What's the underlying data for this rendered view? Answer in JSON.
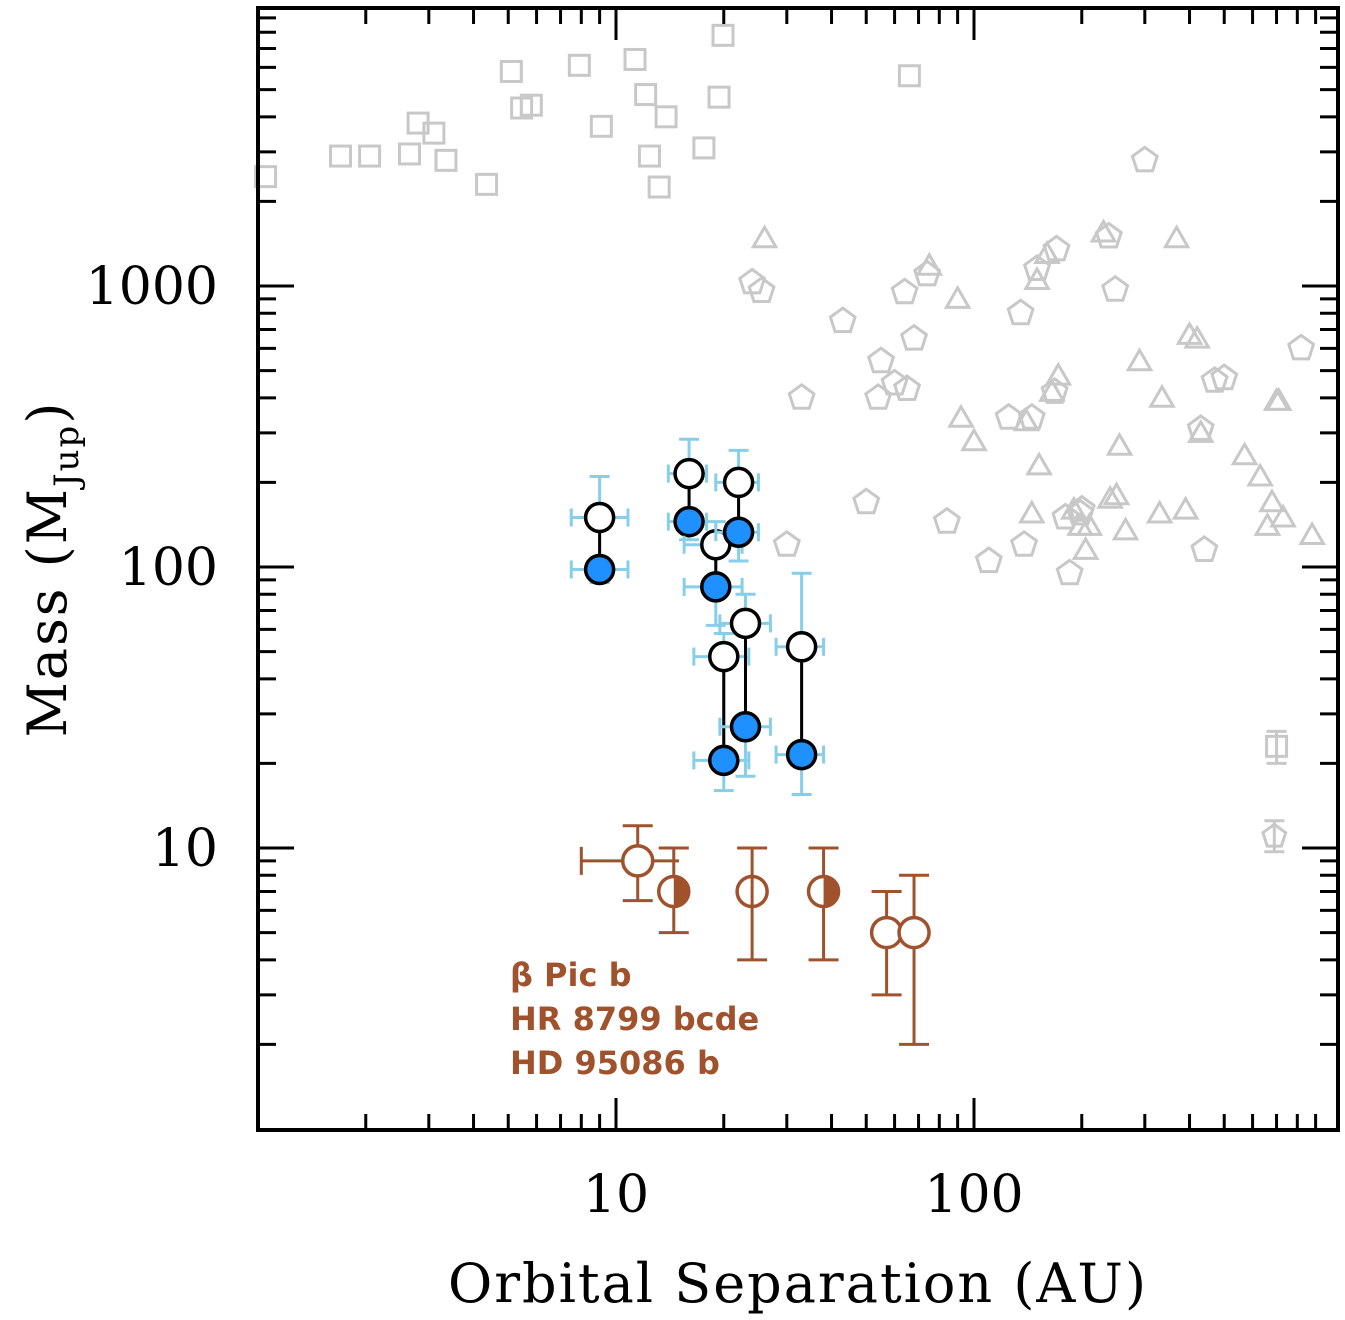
{
  "chart_data": {
    "type": "scatter",
    "xlabel": "Orbital Separation (AU)",
    "ylabel": "Mass (M",
    "ylabel_sub": "Jup",
    "ylabel_close": ")",
    "xscale": "log",
    "yscale": "log",
    "xlim": [
      1,
      900
    ],
    "ylim": [
      1.1,
      9000
    ],
    "x_ticks": [
      {
        "value": 10,
        "label": "10"
      },
      {
        "value": 100,
        "label": "100"
      }
    ],
    "y_ticks": [
      {
        "value": 10,
        "label": "10"
      },
      {
        "value": 100,
        "label": "100"
      },
      {
        "value": 1000,
        "label": "1000"
      }
    ],
    "colors": {
      "gray": "#c8c8c8",
      "blue": "#1e90ff",
      "light_blue": "#87ceeb",
      "brown": "#a0522d"
    },
    "annotations": [
      "β Pic b",
      "HR 8799 bcde",
      "HD 95086 b"
    ],
    "squares": [
      [
        1.05,
        2450
      ],
      [
        1.7,
        2900
      ],
      [
        2.05,
        2900
      ],
      [
        2.65,
        2950
      ],
      [
        2.8,
        3800
      ],
      [
        3.1,
        3500
      ],
      [
        3.35,
        2800
      ],
      [
        4.35,
        2300
      ],
      [
        5.1,
        5800
      ],
      [
        5.45,
        4300
      ],
      [
        5.8,
        4400
      ],
      [
        7.9,
        6100
      ],
      [
        9.1,
        3700
      ],
      [
        11.3,
        6400
      ],
      [
        12.1,
        4800
      ],
      [
        12.4,
        2900
      ],
      [
        13.2,
        2250
      ],
      [
        13.8,
        4000
      ],
      [
        17.6,
        3100
      ],
      [
        19.4,
        4700
      ],
      [
        19.9,
        7800
      ],
      [
        66.0,
        5600
      ]
    ],
    "pentagons": [
      [
        24.0,
        1030
      ],
      [
        25.5,
        960
      ],
      [
        30.0,
        120
      ],
      [
        33.0,
        400
      ],
      [
        43.0,
        750
      ],
      [
        50.0,
        170
      ],
      [
        54.0,
        400
      ],
      [
        55.0,
        540
      ],
      [
        60.0,
        450
      ],
      [
        64.0,
        950
      ],
      [
        65.0,
        430
      ],
      [
        68.0,
        650
      ],
      [
        74.0,
        1100
      ],
      [
        84.0,
        145
      ],
      [
        110.0,
        105
      ],
      [
        125.0,
        340
      ],
      [
        135.0,
        800
      ],
      [
        138.0,
        120
      ],
      [
        145.0,
        340
      ],
      [
        150.0,
        1150
      ],
      [
        168.0,
        420
      ],
      [
        170.0,
        1350
      ],
      [
        180.0,
        150
      ],
      [
        185.0,
        95
      ],
      [
        198.0,
        155
      ],
      [
        200.0,
        160
      ],
      [
        238.0,
        1500
      ],
      [
        248.0,
        970
      ],
      [
        300.0,
        2800
      ],
      [
        430.0,
        310
      ],
      [
        440.0,
        115
      ],
      [
        470.0,
        460
      ],
      [
        500.0,
        470
      ],
      [
        820.0,
        600
      ]
    ],
    "triangles": [
      [
        26.0,
        1480
      ],
      [
        75.0,
        1180
      ],
      [
        90.0,
        900
      ],
      [
        92.0,
        340
      ],
      [
        100.0,
        280
      ],
      [
        140.0,
        330
      ],
      [
        145.0,
        155
      ],
      [
        150.0,
        1050
      ],
      [
        152.0,
        230
      ],
      [
        160.0,
        1300
      ],
      [
        165.0,
        420
      ],
      [
        172.0,
        480
      ],
      [
        190.0,
        160
      ],
      [
        198.0,
        140
      ],
      [
        205.0,
        115
      ],
      [
        210.0,
        140
      ],
      [
        230.0,
        1550
      ],
      [
        240.0,
        175
      ],
      [
        250.0,
        180
      ],
      [
        255.0,
        270
      ],
      [
        265.0,
        135
      ],
      [
        290.0,
        540
      ],
      [
        330.0,
        155
      ],
      [
        335.0,
        400
      ],
      [
        368.0,
        1480
      ],
      [
        390.0,
        160
      ],
      [
        400.0,
        670
      ],
      [
        420.0,
        650
      ],
      [
        430.0,
        300
      ],
      [
        570.0,
        250
      ],
      [
        630.0,
        210
      ],
      [
        660.0,
        140
      ],
      [
        680.0,
        170
      ],
      [
        700.0,
        390
      ],
      [
        710.0,
        390
      ],
      [
        730.0,
        150
      ],
      [
        880.0,
        130
      ]
    ],
    "gray_errorbars": [
      {
        "x": 690.0,
        "y": 11.0,
        "ylo": 9.7,
        "yhi": 12.5,
        "marker": "pentagon"
      },
      {
        "x": 700.0,
        "y": 23.0,
        "ylo": 20.0,
        "yhi": 26.0,
        "marker": "square"
      }
    ],
    "blue_pairs": [
      {
        "x": 9.0,
        "xlo": 7.5,
        "xhi": 10.8,
        "y_open": 150,
        "y_filled": 98,
        "ylo": 88,
        "yhi": 210
      },
      {
        "x": 16.0,
        "xlo": 14.0,
        "xhi": 17.9,
        "y_open": 215,
        "y_filled": 145,
        "ylo": 125,
        "yhi": 285
      },
      {
        "x": 19.0,
        "xlo": 15.5,
        "xhi": 22.5,
        "y_open": 120,
        "y_filled": 85,
        "ylo": 62,
        "yhi": 145
      },
      {
        "x": 22.0,
        "xlo": 19.0,
        "xhi": 25.0,
        "y_open": 200,
        "y_filled": 133,
        "ylo": 105,
        "yhi": 260
      },
      {
        "x": 20.0,
        "xlo": 16.5,
        "xhi": 23.5,
        "y_open": 48,
        "y_filled": 20.5,
        "ylo": 16.0,
        "yhi": 58
      },
      {
        "x": 23.0,
        "xlo": 19.5,
        "xhi": 27.0,
        "y_open": 63,
        "y_filled": 27,
        "ylo": 18.0,
        "yhi": 80
      },
      {
        "x": 33.0,
        "xlo": 28.0,
        "xhi": 38.0,
        "y_open": 52,
        "y_filled": 21.5,
        "ylo": 15.5,
        "yhi": 95
      }
    ],
    "brown_points": [
      {
        "x": 11.5,
        "y": 9.0,
        "ylo": 6.5,
        "yhi": 12.0,
        "xlo": 8.0,
        "xhi": 15.0,
        "marker": "open"
      },
      {
        "x": 14.5,
        "y": 7.0,
        "ylo": 5.0,
        "yhi": 10.0,
        "marker": "half"
      },
      {
        "x": 24.0,
        "y": 7.0,
        "ylo": 4.0,
        "yhi": 10.0,
        "marker": "open-tick"
      },
      {
        "x": 38.0,
        "y": 7.0,
        "ylo": 4.0,
        "yhi": 10.0,
        "marker": "half"
      },
      {
        "x": 57.0,
        "y": 5.0,
        "ylo": 3.0,
        "yhi": 7.0,
        "marker": "open"
      },
      {
        "x": 68.0,
        "y": 5.0,
        "ylo": 2.0,
        "yhi": 8.0,
        "marker": "open"
      }
    ]
  }
}
